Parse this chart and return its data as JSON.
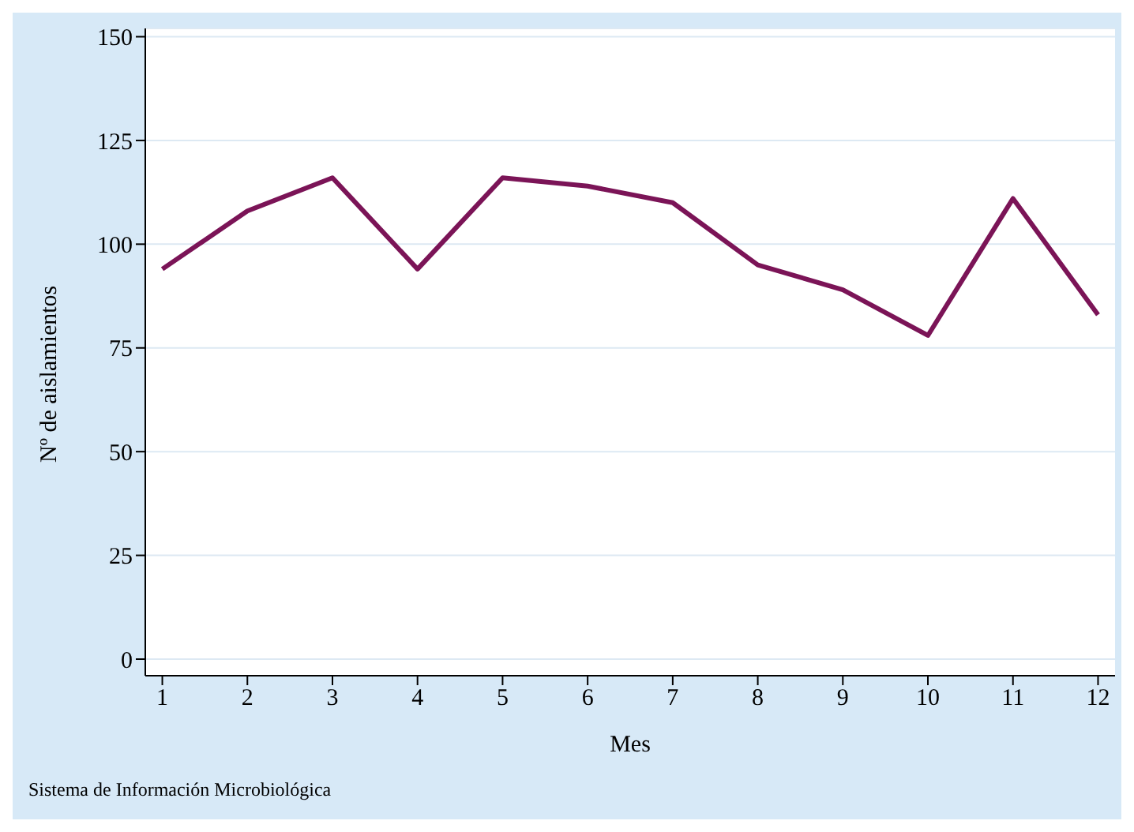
{
  "chart_data": {
    "type": "line",
    "xlabel": "Mes",
    "ylabel": "Nº de aislamientos",
    "annotations": [
      "Sistema de Información Microbiológica"
    ],
    "x": [
      1,
      2,
      3,
      4,
      5,
      6,
      7,
      8,
      9,
      10,
      11,
      12
    ],
    "series": [
      {
        "color": "#7b1457",
        "values": [
          94,
          108,
          116,
          94,
          116,
          114,
          110,
          95,
          89,
          78,
          111,
          83
        ]
      }
    ],
    "xlim": [
      0.8,
      12.2
    ],
    "xticks": [
      1,
      2,
      3,
      4,
      5,
      6,
      7,
      8,
      9,
      10,
      11,
      12
    ],
    "ylim": [
      -4,
      152
    ],
    "yticks": [
      0,
      25,
      50,
      75,
      100,
      125,
      150
    ],
    "grid": "y",
    "legend": false,
    "marker": "none",
    "line_style": "solid"
  }
}
